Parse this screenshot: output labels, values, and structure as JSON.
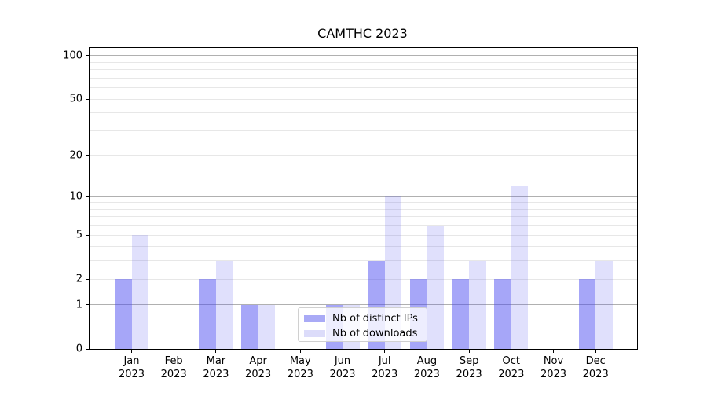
{
  "figure": {
    "title": "CAMTHC 2023"
  },
  "colors": {
    "series1_fill": "rgba(70,70,240,0.48)",
    "series1_solid": "#a9aaf6",
    "series2_fill": "rgba(70,70,240,0.17)",
    "series2_solid": "#dcdcfa",
    "grid_major": "#b0b0b0",
    "grid_minor": "#e7e7e7",
    "axis": "#000000",
    "legend_border": "#d0d0d0"
  },
  "chart_data": {
    "type": "bar",
    "title": "CAMTHC 2023",
    "grid": "on",
    "yscale": "log-like (position proportional to log10(1+y))",
    "legend_position": "inside axes, lower center",
    "categories": [
      {
        "month": "Jan",
        "year": "2023"
      },
      {
        "month": "Feb",
        "year": "2023"
      },
      {
        "month": "Mar",
        "year": "2023"
      },
      {
        "month": "Apr",
        "year": "2023"
      },
      {
        "month": "May",
        "year": "2023"
      },
      {
        "month": "Jun",
        "year": "2023"
      },
      {
        "month": "Jul",
        "year": "2023"
      },
      {
        "month": "Aug",
        "year": "2023"
      },
      {
        "month": "Sep",
        "year": "2023"
      },
      {
        "month": "Oct",
        "year": "2023"
      },
      {
        "month": "Nov",
        "year": "2023"
      },
      {
        "month": "Dec",
        "year": "2023"
      }
    ],
    "series": [
      {
        "name": "Nb of distinct IPs",
        "values": [
          2,
          0,
          2,
          1,
          0,
          1,
          3,
          2,
          2,
          2,
          0,
          2
        ]
      },
      {
        "name": "Nb of downloads",
        "values": [
          5,
          0,
          3,
          1,
          0,
          1,
          10,
          6,
          3,
          12,
          0,
          3
        ]
      }
    ],
    "yticks": [
      0,
      1,
      2,
      5,
      10,
      20,
      50,
      100
    ],
    "major_gridlines": [
      1,
      10,
      100
    ],
    "minor_gridlines": [
      2,
      3,
      4,
      5,
      6,
      7,
      8,
      9,
      20,
      30,
      40,
      50,
      60,
      70,
      80,
      90
    ],
    "ylim": [
      0,
      113
    ]
  }
}
